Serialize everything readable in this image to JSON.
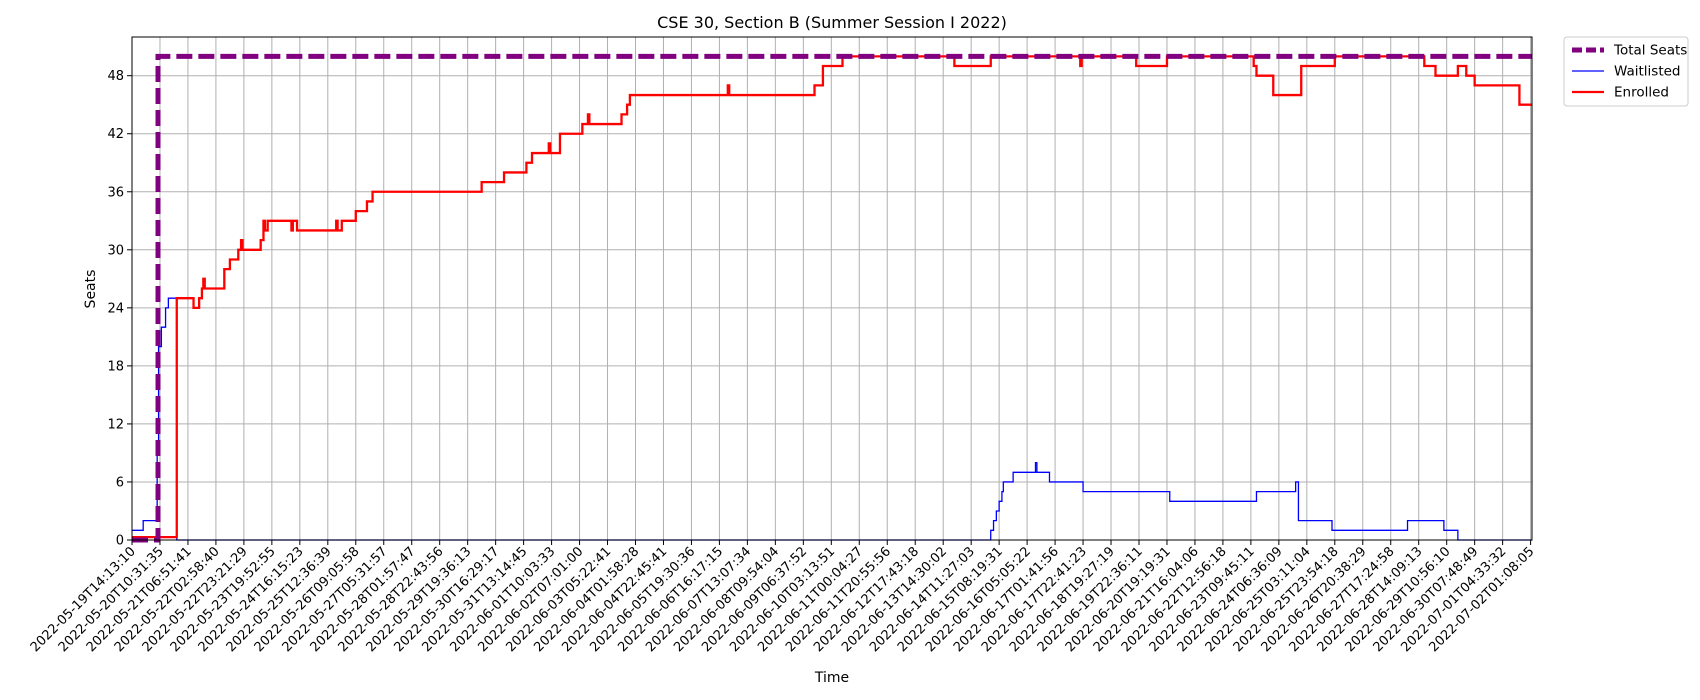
{
  "chart_data": {
    "type": "line",
    "title": "CSE 30, Section B (Summer Session I 2022)",
    "xlabel": "Time",
    "ylabel": "Seats",
    "ylim": [
      0,
      52
    ],
    "yticks": [
      0,
      6,
      12,
      18,
      24,
      30,
      36,
      42,
      48
    ],
    "grid": true,
    "legend_position": "outside-top-right",
    "x_ticks": [
      "2022-05-19T14:13:10",
      "2022-05-20T10:31:35",
      "2022-05-21T06:51:41",
      "2022-05-22T02:58:40",
      "2022-05-22T23:21:29",
      "2022-05-23T19:52:55",
      "2022-05-24T16:15:23",
      "2022-05-25T12:36:39",
      "2022-05-26T09:05:58",
      "2022-05-27T05:31:57",
      "2022-05-28T01:57:47",
      "2022-05-28T22:43:56",
      "2022-05-29T19:36:13",
      "2022-05-30T16:29:17",
      "2022-05-31T13:14:45",
      "2022-06-01T10:03:33",
      "2022-06-02T07:01:00",
      "2022-06-03T05:22:41",
      "2022-06-04T01:58:28",
      "2022-06-04T22:45:41",
      "2022-06-05T19:30:36",
      "2022-06-06T16:17:15",
      "2022-06-07T13:07:34",
      "2022-06-08T09:54:04",
      "2022-06-09T06:37:52",
      "2022-06-10T03:13:51",
      "2022-06-11T00:04:27",
      "2022-06-11T20:55:56",
      "2022-06-12T17:43:18",
      "2022-06-13T14:30:02",
      "2022-06-14T11:27:03",
      "2022-06-15T08:19:31",
      "2022-06-16T05:05:22",
      "2022-06-17T01:41:56",
      "2022-06-17T22:41:23",
      "2022-06-18T19:27:19",
      "2022-06-19T22:36:11",
      "2022-06-20T19:19:31",
      "2022-06-21T16:04:06",
      "2022-06-22T12:56:18",
      "2022-06-23T09:45:11",
      "2022-06-24T06:36:09",
      "2022-06-25T03:11:04",
      "2022-06-25T23:54:18",
      "2022-06-26T20:38:29",
      "2022-06-27T17:24:58",
      "2022-06-28T14:09:13",
      "2022-06-29T10:56:10",
      "2022-06-30T07:48:49",
      "2022-07-01T04:33:32",
      "2022-07-02T01:08:05"
    ],
    "x_range": [
      0,
      50.05
    ],
    "series": [
      {
        "name": "Total Seats",
        "color": "#800080",
        "style": "dashed",
        "points": [
          [
            0,
            0
          ],
          [
            0.93,
            0
          ],
          [
            0.93,
            50
          ],
          [
            50.05,
            50
          ]
        ]
      },
      {
        "name": "Waitlisted",
        "color": "#0000ff",
        "style": "solid",
        "points": [
          [
            0,
            1
          ],
          [
            0.4,
            1
          ],
          [
            0.4,
            2
          ],
          [
            0.9,
            2
          ],
          [
            0.9,
            9
          ],
          [
            0.95,
            9
          ],
          [
            0.95,
            20
          ],
          [
            1.05,
            20
          ],
          [
            1.05,
            22
          ],
          [
            1.2,
            22
          ],
          [
            1.2,
            24
          ],
          [
            1.3,
            24
          ],
          [
            1.3,
            25
          ],
          [
            1.6,
            25
          ],
          [
            1.6,
            0
          ],
          [
            30.7,
            0
          ],
          [
            30.7,
            1
          ],
          [
            30.8,
            1
          ],
          [
            30.8,
            2
          ],
          [
            30.9,
            2
          ],
          [
            30.9,
            3
          ],
          [
            31.0,
            3
          ],
          [
            31.0,
            4
          ],
          [
            31.1,
            4
          ],
          [
            31.1,
            5
          ],
          [
            31.15,
            5
          ],
          [
            31.15,
            6
          ],
          [
            31.5,
            6
          ],
          [
            31.5,
            7
          ],
          [
            32.3,
            7
          ],
          [
            32.3,
            8
          ],
          [
            32.35,
            8
          ],
          [
            32.35,
            7
          ],
          [
            32.8,
            7
          ],
          [
            32.8,
            6
          ],
          [
            34.0,
            6
          ],
          [
            34.0,
            5
          ],
          [
            37.1,
            5
          ],
          [
            37.1,
            4
          ],
          [
            40.2,
            4
          ],
          [
            40.2,
            5
          ],
          [
            41.6,
            5
          ],
          [
            41.6,
            6
          ],
          [
            41.7,
            6
          ],
          [
            41.7,
            2
          ],
          [
            42.9,
            2
          ],
          [
            42.9,
            1
          ],
          [
            45.6,
            1
          ],
          [
            45.6,
            2
          ],
          [
            46.9,
            2
          ],
          [
            46.9,
            1
          ],
          [
            47.4,
            1
          ],
          [
            47.4,
            0
          ],
          [
            50.05,
            0
          ]
        ]
      },
      {
        "name": "Enrolled",
        "color": "#ff0000",
        "style": "solid",
        "points": [
          [
            0,
            0.3
          ],
          [
            1.6,
            0.3
          ],
          [
            1.6,
            25
          ],
          [
            2.2,
            25
          ],
          [
            2.2,
            24
          ],
          [
            2.4,
            24
          ],
          [
            2.4,
            25
          ],
          [
            2.5,
            25
          ],
          [
            2.5,
            26
          ],
          [
            2.55,
            26
          ],
          [
            2.55,
            27
          ],
          [
            2.6,
            27
          ],
          [
            2.6,
            26
          ],
          [
            3.3,
            26
          ],
          [
            3.3,
            28
          ],
          [
            3.5,
            28
          ],
          [
            3.5,
            29
          ],
          [
            3.8,
            29
          ],
          [
            3.8,
            30
          ],
          [
            3.9,
            30
          ],
          [
            3.9,
            31
          ],
          [
            3.95,
            31
          ],
          [
            3.95,
            30
          ],
          [
            4.6,
            30
          ],
          [
            4.6,
            31
          ],
          [
            4.7,
            31
          ],
          [
            4.7,
            33
          ],
          [
            4.75,
            33
          ],
          [
            4.75,
            32
          ],
          [
            4.85,
            32
          ],
          [
            4.85,
            33
          ],
          [
            5.7,
            33
          ],
          [
            5.7,
            32
          ],
          [
            5.75,
            32
          ],
          [
            5.75,
            33
          ],
          [
            5.9,
            33
          ],
          [
            5.9,
            32
          ],
          [
            7.3,
            32
          ],
          [
            7.3,
            33
          ],
          [
            7.35,
            33
          ],
          [
            7.35,
            32
          ],
          [
            7.5,
            32
          ],
          [
            7.5,
            33
          ],
          [
            8.0,
            33
          ],
          [
            8.0,
            34
          ],
          [
            8.4,
            34
          ],
          [
            8.4,
            35
          ],
          [
            8.6,
            35
          ],
          [
            8.6,
            36
          ],
          [
            12.5,
            36
          ],
          [
            12.5,
            37
          ],
          [
            13.3,
            37
          ],
          [
            13.3,
            38
          ],
          [
            14.1,
            38
          ],
          [
            14.1,
            39
          ],
          [
            14.3,
            39
          ],
          [
            14.3,
            40
          ],
          [
            14.9,
            40
          ],
          [
            14.9,
            41
          ],
          [
            14.95,
            41
          ],
          [
            14.95,
            40
          ],
          [
            15.3,
            40
          ],
          [
            15.3,
            42
          ],
          [
            16.1,
            42
          ],
          [
            16.1,
            43
          ],
          [
            16.3,
            43
          ],
          [
            16.3,
            44
          ],
          [
            16.35,
            44
          ],
          [
            16.35,
            43
          ],
          [
            17.5,
            43
          ],
          [
            17.5,
            44
          ],
          [
            17.7,
            44
          ],
          [
            17.7,
            45
          ],
          [
            17.8,
            45
          ],
          [
            17.8,
            46
          ],
          [
            21.3,
            46
          ],
          [
            21.3,
            47
          ],
          [
            21.35,
            47
          ],
          [
            21.35,
            46
          ],
          [
            24.4,
            46
          ],
          [
            24.4,
            47
          ],
          [
            24.7,
            47
          ],
          [
            24.7,
            49
          ],
          [
            25.4,
            49
          ],
          [
            25.4,
            50
          ],
          [
            29.4,
            50
          ],
          [
            29.4,
            49
          ],
          [
            30.7,
            49
          ],
          [
            30.7,
            50
          ],
          [
            33.9,
            50
          ],
          [
            33.9,
            49
          ],
          [
            33.95,
            49
          ],
          [
            33.95,
            50
          ],
          [
            35.9,
            50
          ],
          [
            35.9,
            49
          ],
          [
            37.0,
            49
          ],
          [
            37.0,
            50
          ],
          [
            40.1,
            50
          ],
          [
            40.1,
            49
          ],
          [
            40.2,
            49
          ],
          [
            40.2,
            48
          ],
          [
            40.8,
            48
          ],
          [
            40.8,
            46
          ],
          [
            41.8,
            46
          ],
          [
            41.8,
            49
          ],
          [
            43.0,
            49
          ],
          [
            43.0,
            50
          ],
          [
            46.2,
            50
          ],
          [
            46.2,
            49
          ],
          [
            46.6,
            49
          ],
          [
            46.6,
            48
          ],
          [
            47.4,
            48
          ],
          [
            47.4,
            49
          ],
          [
            47.7,
            49
          ],
          [
            47.7,
            48
          ],
          [
            48.0,
            48
          ],
          [
            48.0,
            47
          ],
          [
            49.6,
            47
          ],
          [
            49.6,
            45
          ],
          [
            50.05,
            45
          ]
        ]
      }
    ],
    "legend": [
      {
        "label": "Total Seats",
        "color": "#800080",
        "style": "dashed"
      },
      {
        "label": "Waitlisted",
        "color": "#0000ff",
        "style": "solid"
      },
      {
        "label": "Enrolled",
        "color": "#ff0000",
        "style": "solid"
      }
    ]
  }
}
